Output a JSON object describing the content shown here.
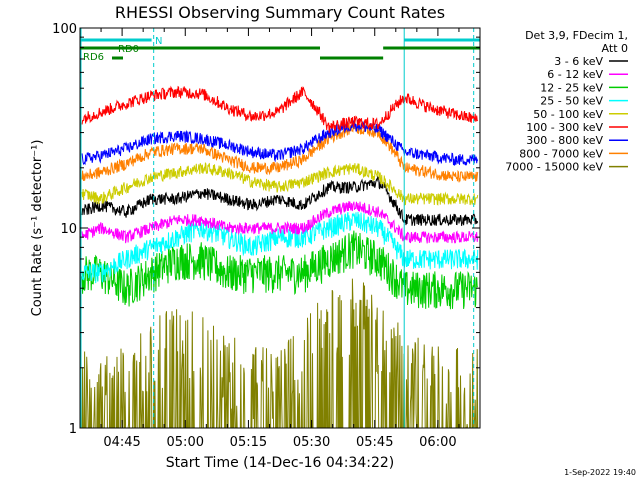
{
  "chart_data": {
    "type": "line",
    "title": "RHESSI Observing Summary Count Rates",
    "xlabel": "Start Time (14-Dec-16 04:34:22)",
    "ylabel": "Count Rate (s⁻¹ detector⁻¹)",
    "yscale": "log",
    "ylim": [
      1,
      100
    ],
    "xlim_minutes": [
      35,
      130
    ],
    "x_ticks": [
      {
        "t": 45,
        "label": "04:45"
      },
      {
        "t": 60,
        "label": "05:00"
      },
      {
        "t": 75,
        "label": "05:15"
      },
      {
        "t": 90,
        "label": "05:30"
      },
      {
        "t": 105,
        "label": "05:45"
      },
      {
        "t": 120,
        "label": "06:00"
      }
    ],
    "y_ticks": [
      {
        "v": 1,
        "label": "1"
      },
      {
        "v": 10,
        "label": "10"
      },
      {
        "v": 100,
        "label": "100"
      }
    ],
    "legend_header": [
      "Det 3,9, FDecim 1,",
      "Att 0"
    ],
    "legend_placement": "right",
    "series": [
      {
        "name": "3 - 6 keV",
        "color": "#000000",
        "x": [
          35,
          40,
          46,
          52,
          58,
          64,
          70,
          76,
          82,
          88,
          94,
          100,
          106,
          112,
          118,
          124,
          129
        ],
        "y": [
          12,
          13,
          12,
          14,
          14,
          15,
          14,
          13,
          14,
          13,
          16,
          16,
          17,
          11,
          11,
          11,
          11
        ]
      },
      {
        "name": "6 - 12 keV",
        "color": "#ff00ff",
        "x": [
          35,
          40,
          46,
          52,
          58,
          64,
          70,
          76,
          82,
          88,
          94,
          100,
          106,
          112,
          118,
          124,
          129
        ],
        "y": [
          9,
          10,
          9,
          10,
          11,
          11,
          10,
          10,
          10,
          10,
          12,
          13,
          12,
          9,
          9,
          9,
          9
        ]
      },
      {
        "name": "12 - 25 keV",
        "color": "#00cc00",
        "x": [
          35,
          40,
          46,
          52,
          58,
          64,
          70,
          76,
          82,
          88,
          94,
          100,
          106,
          112,
          118,
          124,
          129
        ],
        "y": [
          6,
          6,
          5,
          6,
          7,
          7,
          6,
          6,
          6,
          6,
          7,
          8,
          7,
          5,
          5,
          5,
          5
        ]
      },
      {
        "name": "25 - 50 keV",
        "color": "#00ffff",
        "x": [
          35,
          40,
          46,
          52,
          58,
          64,
          70,
          76,
          82,
          88,
          94,
          100,
          106,
          112,
          118,
          124,
          129
        ],
        "y": [
          6,
          6,
          7,
          8,
          9,
          10,
          9,
          8,
          9,
          9,
          10,
          11,
          10,
          7,
          7,
          7,
          7
        ]
      },
      {
        "name": "50 - 100 keV",
        "color": "#cccc00",
        "x": [
          35,
          40,
          46,
          52,
          58,
          64,
          70,
          76,
          82,
          88,
          94,
          100,
          106,
          112,
          118,
          124,
          129
        ],
        "y": [
          15,
          14,
          16,
          18,
          19,
          20,
          19,
          17,
          16,
          17,
          19,
          20,
          18,
          14,
          14,
          14,
          14
        ]
      },
      {
        "name": "100 - 300 keV",
        "color": "#ff0000",
        "x": [
          35,
          40,
          46,
          52,
          58,
          64,
          70,
          76,
          82,
          88,
          94,
          100,
          106,
          112,
          118,
          124,
          129
        ],
        "y": [
          35,
          38,
          42,
          46,
          48,
          47,
          40,
          36,
          38,
          48,
          32,
          34,
          33,
          45,
          40,
          37,
          35
        ]
      },
      {
        "name": "300 - 800 keV",
        "color": "#0000ff",
        "x": [
          35,
          40,
          46,
          52,
          58,
          64,
          70,
          76,
          82,
          88,
          94,
          100,
          106,
          112,
          118,
          124,
          129
        ],
        "y": [
          22,
          23,
          25,
          28,
          29,
          28,
          26,
          24,
          23,
          25,
          30,
          33,
          31,
          24,
          23,
          22,
          22
        ]
      },
      {
        "name": "800 - 7000 keV",
        "color": "#ff8000",
        "x": [
          35,
          40,
          46,
          52,
          58,
          64,
          70,
          76,
          82,
          88,
          94,
          100,
          106,
          112,
          118,
          124,
          129
        ],
        "y": [
          18,
          19,
          21,
          24,
          25,
          25,
          22,
          20,
          20,
          22,
          28,
          32,
          30,
          20,
          19,
          18,
          18
        ]
      },
      {
        "name": "7000 - 15000 keV",
        "color": "#808000",
        "x": [
          35,
          40,
          46,
          52,
          58,
          64,
          70,
          76,
          82,
          88,
          94,
          100,
          106,
          112,
          118,
          124,
          129
        ],
        "y": [
          1,
          1,
          1,
          1.4,
          1.6,
          1.4,
          1.2,
          1,
          1,
          1.3,
          1.9,
          2.4,
          1.8,
          1.2,
          1,
          1,
          1
        ]
      }
    ],
    "annotations": [
      {
        "text": "RD0",
        "color": "#008000"
      },
      {
        "text": "RD6",
        "color": "#008000"
      },
      {
        "text": "N",
        "color": "#00cccc"
      }
    ],
    "markers": {
      "green_bars_minutes": [
        [
          35,
          92
        ],
        [
          92,
          107
        ],
        [
          107,
          130
        ]
      ],
      "cyan_bars_minutes": [
        [
          35,
          52
        ],
        [
          112,
          130
        ]
      ],
      "dashed_lines_minutes": [
        52.5,
        128.5
      ],
      "solid_cyan_minutes": [
        112
      ]
    }
  },
  "timestamp": "1-Sep-2022 19:40"
}
